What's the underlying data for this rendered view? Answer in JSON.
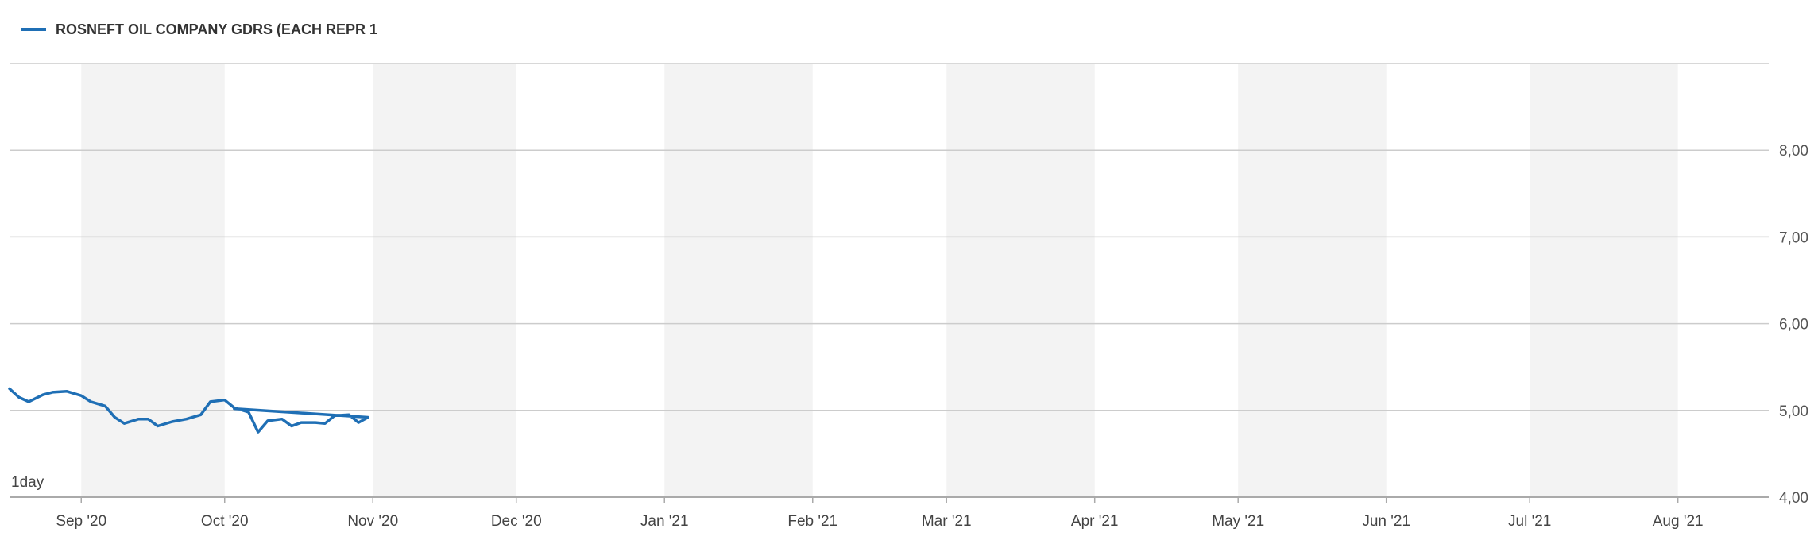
{
  "chart_data": {
    "type": "line",
    "title": "",
    "xlabel": "",
    "ylabel": "",
    "legend": {
      "position": "top-left",
      "label": "ROSNEFT OIL COMPANY GDRS (EACH REPR 1"
    },
    "period_label": "1day",
    "ylim": [
      4.0,
      9.0
    ],
    "y_ticks": [
      "4,00",
      "5,00",
      "6,00",
      "7,00",
      "8,00"
    ],
    "y_tick_values": [
      4,
      5,
      6,
      7,
      8
    ],
    "grid": true,
    "x_range": [
      "2020-08-17",
      "2021-08-20"
    ],
    "x_ticks": [
      {
        "label": "Sep '20",
        "date": "2020-09-01"
      },
      {
        "label": "Oct '20",
        "date": "2020-10-01"
      },
      {
        "label": "Nov '20",
        "date": "2020-11-01"
      },
      {
        "label": "Dec '20",
        "date": "2020-12-01"
      },
      {
        "label": "Jan '21",
        "date": "2021-01-01"
      },
      {
        "label": "Feb '21",
        "date": "2021-02-01"
      },
      {
        "label": "Mar '21",
        "date": "2021-03-01"
      },
      {
        "label": "Apr '21",
        "date": "2021-04-01"
      },
      {
        "label": "May '21",
        "date": "2021-05-01"
      },
      {
        "label": "Jun '21",
        "date": "2021-06-01"
      },
      {
        "label": "Jul '21",
        "date": "2021-07-01"
      },
      {
        "label": "Aug '21",
        "date": "2021-08-01"
      }
    ],
    "series": [
      {
        "name": "ROSNEFT OIL COMPANY GDRS (EACH REPR 1",
        "color": "#1f6fb5",
        "points": [
          [
            "2020-08-17",
            5.25
          ],
          [
            "2020-08-19",
            5.15
          ],
          [
            "2020-08-21",
            5.1
          ],
          [
            "2020-08-24",
            5.18
          ],
          [
            "2020-08-26",
            5.21
          ],
          [
            "2020-08-29",
            5.22
          ],
          [
            "2020-09-01",
            5.17
          ],
          [
            "2020-09-03",
            5.1
          ],
          [
            "2020-09-06",
            5.05
          ],
          [
            "2020-09-08",
            4.92
          ],
          [
            "2020-09-10",
            4.85
          ],
          [
            "2020-09-13",
            4.9
          ],
          [
            "2020-09-15",
            4.9
          ],
          [
            "2020-09-17",
            4.82
          ],
          [
            "2020-09-20",
            4.87
          ],
          [
            "2020-09-23",
            4.9
          ],
          [
            "2020-09-26",
            4.95
          ],
          [
            "2020-09-28",
            5.1
          ],
          [
            "2020-10-01",
            5.12
          ],
          [
            "2020-10-03",
            5.03
          ],
          [
            "2020-10-06",
            4.98
          ],
          [
            "2020-10-08",
            4.75
          ],
          [
            "2020-10-10",
            4.88
          ],
          [
            "2020-10-13",
            4.9
          ],
          [
            "2020-10-15",
            4.82
          ],
          [
            "2020-10-17",
            4.86
          ],
          [
            "2020-10-20",
            4.86
          ],
          [
            "2020-10-22",
            4.85
          ],
          [
            "2020-10-24",
            4.94
          ],
          [
            "2020-10-27",
            4.95
          ],
          [
            "2020-10-29",
            4.86
          ],
          [
            "2020-10-31",
            4.92
          ],
          [
            "2020-10-03",
            5.02
          ]
        ]
      }
    ]
  }
}
